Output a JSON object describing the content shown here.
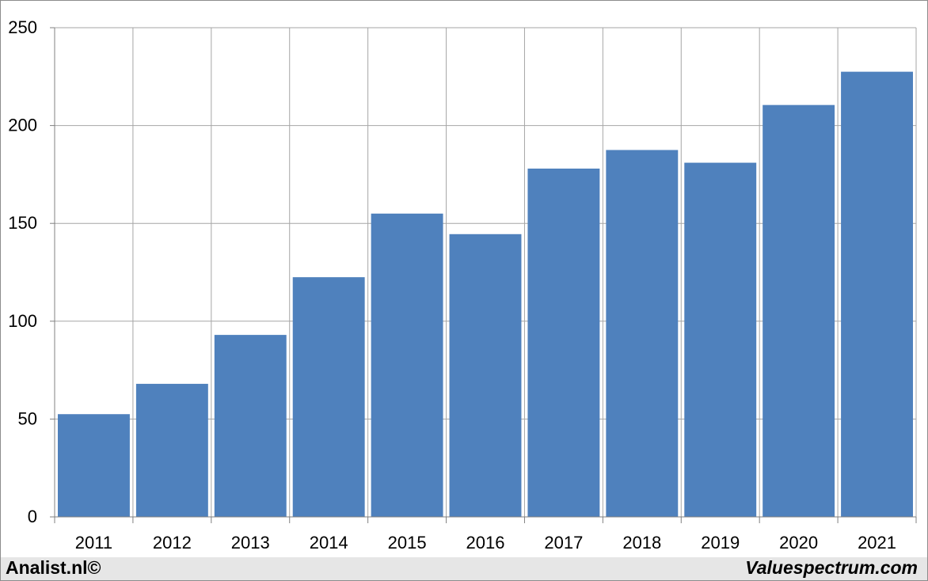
{
  "chart_data": {
    "type": "bar",
    "title": "",
    "xlabel": "",
    "ylabel": "",
    "categories": [
      "2011",
      "2012",
      "2013",
      "2014",
      "2015",
      "2016",
      "2017",
      "2018",
      "2019",
      "2020",
      "2021"
    ],
    "values": [
      52.5,
      68,
      93,
      122.5,
      155,
      144.5,
      178,
      187.5,
      181,
      210.5,
      227.5
    ],
    "ylim": [
      0,
      250
    ],
    "yticks": [
      "0",
      "50",
      "100",
      "150",
      "200",
      "250"
    ],
    "grid": true,
    "legend": "none",
    "bar_color": "#4f81bd",
    "grid_color": "#a6a6a6"
  },
  "footer": {
    "left_text": "Analist.nl©",
    "right_text": "Valuespectrum.com"
  }
}
